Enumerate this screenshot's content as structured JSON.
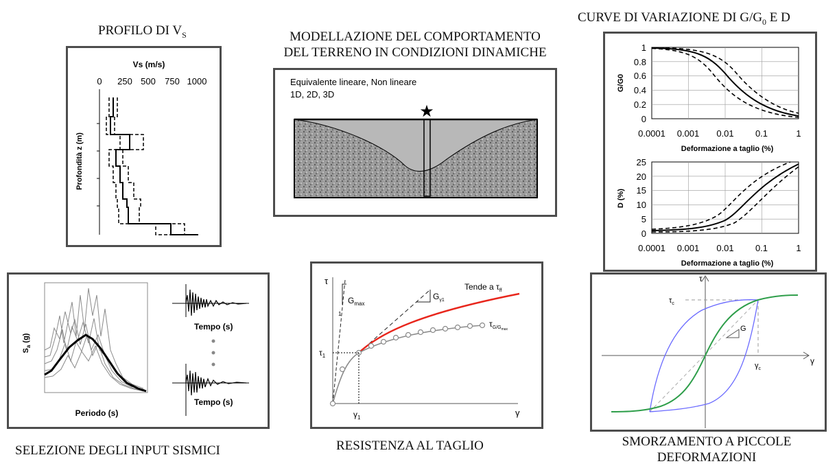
{
  "titles": {
    "vs_profile": "PROFILO DI V",
    "vs_profile_sub": "S",
    "modelling_line1": "MODELLAZIONE DEL COMPORTAMENTO",
    "modelling_line2": "DEL TERRENO IN CONDIZIONI DINAMICHE",
    "curves": "CURVE DI VARIAZIONE DI G/G",
    "curves_sub": "0",
    "curves_suffix": " E D",
    "seismic_input": "SELEZIONE DEGLI INPUT SISMICI",
    "shear_strength": "RESISTENZA AL TAGLIO",
    "damping_line1": "SMORZAMENTO A PICCOLE",
    "damping_line2": "DEFORMAZIONI"
  },
  "vs_panel": {
    "xlabel": "Vs (m/s)",
    "xticks": [
      "0",
      "250",
      "500",
      "750",
      "1000"
    ],
    "ylabel": "Profondità z (m)"
  },
  "model_panel": {
    "text_line1": "Equivalente lineare, Non lineare",
    "text_line2": "1D, 2D, 3D",
    "star": "★"
  },
  "g_panel": {
    "ylabel": "G/G0",
    "yticks": [
      "1",
      "0.8",
      "0.6",
      "0.4",
      "0.2",
      "0"
    ],
    "xticks": [
      "0.0001",
      "0.001",
      "0.01",
      "0.1",
      "1"
    ],
    "xlabel": "Deformazione a taglio (%)"
  },
  "d_panel": {
    "ylabel": "D (%)",
    "yticks": [
      "25",
      "20",
      "15",
      "10",
      "5",
      "0"
    ],
    "xticks": [
      "0.0001",
      "0.001",
      "0.01",
      "0.1",
      "1"
    ],
    "xlabel": "Deformazione a taglio (%)"
  },
  "seismic_panel": {
    "ylabel": "S",
    "ylabel_sub": "a",
    "ylabel_suffix": " (g)",
    "xlabel": "Periodo (s)",
    "time_label_1": "Tempo (s)",
    "time_label_2": "Tempo (s)"
  },
  "strength_panel": {
    "tau": "τ",
    "gamma": "γ",
    "gmax": "G",
    "gmax_sub": "max",
    "ggamma": "G",
    "ggamma_sub": "γ1",
    "tends": "Tende a τ",
    "tends_sub": "ff",
    "tau_g": "τ",
    "tau_g_sub": "G/G",
    "tau_g_subsub": "max",
    "tau1": "τ",
    "tau1_sub": "1",
    "gamma1": "γ",
    "gamma1_sub": "1",
    "one": "1",
    "colors": {
      "red": "#e8261c",
      "grey": "#8a8a8a"
    }
  },
  "damping_panel": {
    "tau": "τ",
    "gamma": "γ",
    "tau_c": "τ",
    "tau_c_sub": "c",
    "gamma_c": "γ",
    "gamma_c_sub": "c",
    "g": "G",
    "colors": {
      "blue": "#6a6aff",
      "green": "#2e9e4a"
    }
  }
}
